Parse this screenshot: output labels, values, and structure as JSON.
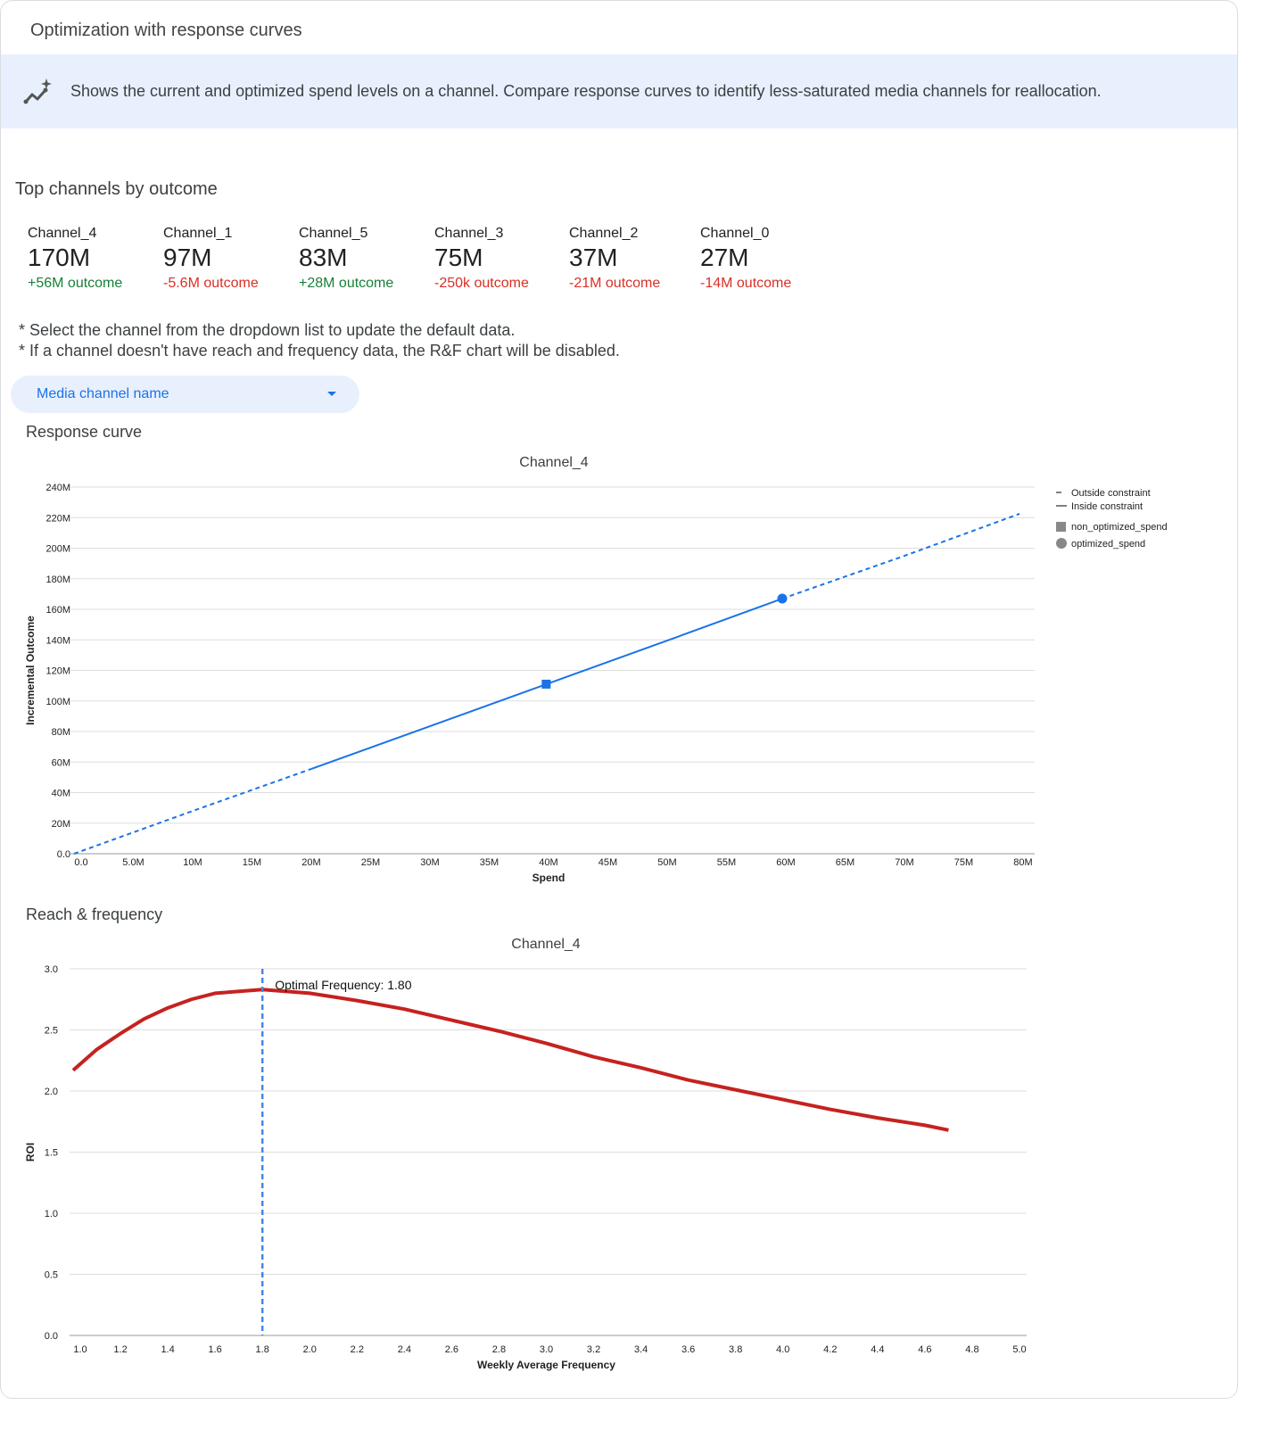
{
  "header": {
    "title": "Optimization with response curves"
  },
  "banner": {
    "icon": "sparkle-trend-icon",
    "text": "Shows the current and optimized spend levels on a channel. Compare response curves to identify less-saturated media channels for reallocation."
  },
  "top_channels": {
    "title": "Top channels by outcome",
    "items": [
      {
        "name": "Channel_4",
        "value": "170M",
        "delta": "+56M outcome",
        "trend": "positive"
      },
      {
        "name": "Channel_1",
        "value": "97M",
        "delta": "-5.6M outcome",
        "trend": "negative"
      },
      {
        "name": "Channel_5",
        "value": "83M",
        "delta": "+28M outcome",
        "trend": "positive"
      },
      {
        "name": "Channel_3",
        "value": "75M",
        "delta": "-250k outcome",
        "trend": "negative"
      },
      {
        "name": "Channel_2",
        "value": "37M",
        "delta": "-21M outcome",
        "trend": "negative"
      },
      {
        "name": "Channel_0",
        "value": "27M",
        "delta": "-14M outcome",
        "trend": "negative"
      }
    ]
  },
  "notes": [
    "* Select the channel from the dropdown list to update the default data.",
    "* If a channel doesn't have reach and frequency data, the R&F chart will be disabled."
  ],
  "dropdown": {
    "placeholder": "Media channel name"
  },
  "colors": {
    "positive": "#188038",
    "negative": "#d93025",
    "curve": "#1a73e8",
    "rf_curve": "#c5221f",
    "optimal_line": "#4285f4"
  },
  "sections": {
    "response": "Response curve",
    "rf": "Reach & frequency"
  },
  "chart_data": [
    {
      "type": "line",
      "title": "Channel_4",
      "xlabel": "Spend",
      "ylabel": "Incremental Outcome",
      "xlim": [
        0,
        80000000
      ],
      "ylim": [
        0,
        240000000
      ],
      "grid": true,
      "legend": "right",
      "x_ticks": [
        "0.0",
        "5.0M",
        "10M",
        "15M",
        "20M",
        "25M",
        "30M",
        "35M",
        "40M",
        "45M",
        "50M",
        "55M",
        "60M",
        "65M",
        "70M",
        "75M",
        "80M"
      ],
      "y_ticks": [
        "0.0",
        "20M",
        "40M",
        "60M",
        "80M",
        "100M",
        "120M",
        "140M",
        "160M",
        "180M",
        "200M",
        "220M",
        "240M"
      ],
      "legend_entries": [
        "Outside constraint",
        "Inside constraint",
        "non_optimized_spend",
        "optimized_spend"
      ],
      "x": [
        0,
        10000000,
        20000000,
        30000000,
        40000000,
        50000000,
        59700000,
        70000000,
        79700000
      ],
      "y": [
        0,
        28000000,
        55500000,
        83500000,
        111500000,
        139500000,
        167000000,
        195000000,
        222500000
      ],
      "constraint_range": [
        20000000,
        59700000
      ],
      "non_optimized_spend": {
        "x": 39800000,
        "y": 111000000
      },
      "optimized_spend": {
        "x": 59700000,
        "y": 167000000
      }
    },
    {
      "type": "line",
      "title": "Channel_4",
      "xlabel": "Weekly Average Frequency",
      "ylabel": "ROI",
      "xlim": [
        1.0,
        5.0
      ],
      "ylim": [
        0,
        3.0
      ],
      "grid": true,
      "x_ticks": [
        "1.0",
        "1.2",
        "1.4",
        "1.6",
        "1.8",
        "2.0",
        "2.2",
        "2.4",
        "2.6",
        "2.8",
        "3.0",
        "3.2",
        "3.4",
        "3.6",
        "3.8",
        "4.0",
        "4.2",
        "4.4",
        "4.6",
        "4.8",
        "5.0"
      ],
      "y_ticks": [
        "0.0",
        "0.5",
        "1.0",
        "1.5",
        "2.0",
        "2.5",
        "3.0"
      ],
      "x": [
        1.0,
        1.1,
        1.2,
        1.3,
        1.4,
        1.5,
        1.6,
        1.8,
        2.0,
        2.2,
        2.4,
        2.6,
        2.8,
        3.0,
        3.2,
        3.4,
        3.6,
        3.8,
        4.0,
        4.2,
        4.4,
        4.6,
        4.7
      ],
      "y": [
        2.17,
        2.34,
        2.47,
        2.59,
        2.68,
        2.75,
        2.8,
        2.83,
        2.8,
        2.74,
        2.67,
        2.58,
        2.49,
        2.39,
        2.28,
        2.19,
        2.09,
        2.01,
        1.93,
        1.85,
        1.78,
        1.72,
        1.68
      ],
      "optimal_frequency": 1.8,
      "annotation": "Optimal Frequency: 1.80"
    }
  ]
}
